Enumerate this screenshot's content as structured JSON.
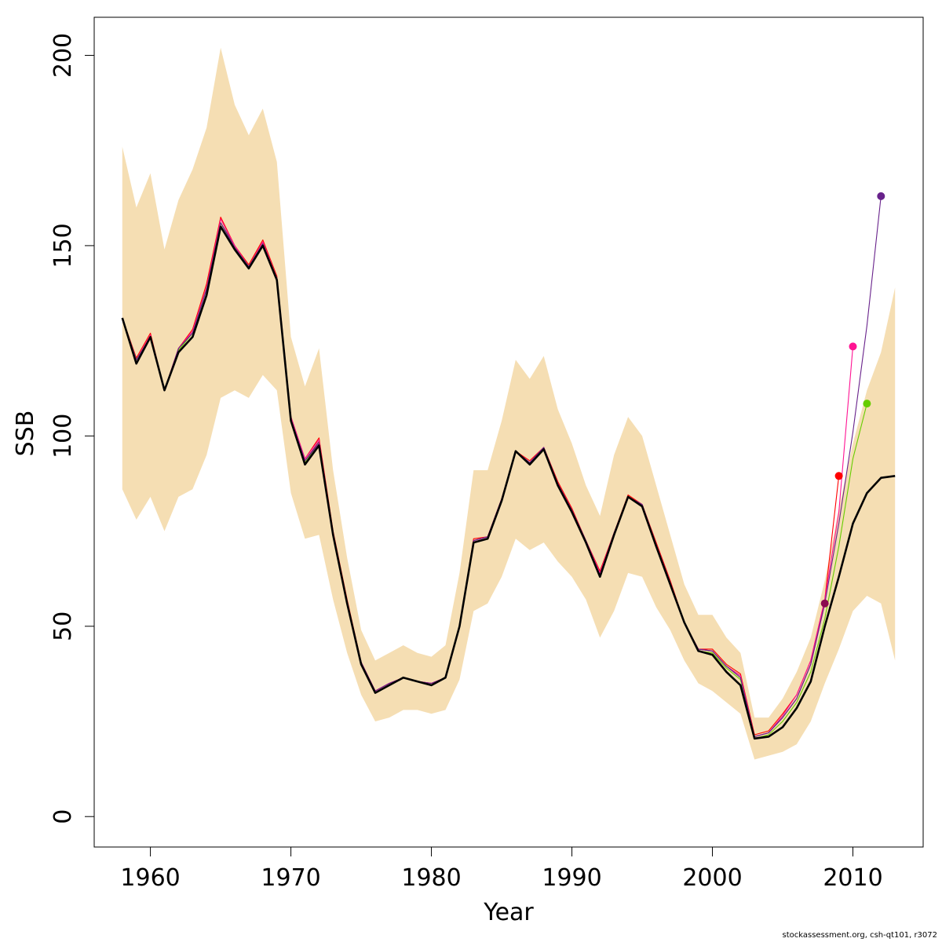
{
  "chart_data": {
    "type": "line",
    "title": "",
    "xlabel": "Year",
    "ylabel": "SSB",
    "xlim": [
      1956,
      2015
    ],
    "ylim": [
      -8,
      210
    ],
    "xticks": [
      1960,
      1970,
      1980,
      1990,
      2000,
      2010
    ],
    "yticks": [
      0,
      50,
      100,
      150,
      200
    ],
    "grid": false,
    "band_color": "#F5DEB3",
    "band": {
      "x": [
        1958,
        1959,
        1960,
        1961,
        1962,
        1963,
        1964,
        1965,
        1966,
        1967,
        1968,
        1969,
        1970,
        1971,
        1972,
        1973,
        1974,
        1975,
        1976,
        1977,
        1978,
        1979,
        1980,
        1981,
        1982,
        1983,
        1984,
        1985,
        1986,
        1987,
        1988,
        1989,
        1990,
        1991,
        1992,
        1993,
        1994,
        1995,
        1996,
        1997,
        1998,
        1999,
        2000,
        2001,
        2002,
        2003,
        2004,
        2005,
        2006,
        2007,
        2008,
        2009,
        2010,
        2011,
        2012,
        2013
      ],
      "upper": [
        176,
        160,
        169,
        149,
        162,
        170,
        181,
        202,
        187,
        179,
        186,
        172,
        126,
        113,
        123,
        91,
        68,
        49,
        41,
        43,
        45,
        43,
        42,
        45,
        64,
        91,
        91,
        104,
        120,
        115,
        121,
        107,
        98,
        87,
        79,
        95,
        105,
        100,
        87,
        74,
        61,
        53,
        53,
        47,
        43,
        26,
        26,
        31,
        38,
        47,
        62,
        81,
        98,
        112,
        122,
        139
      ],
      "lower": [
        86,
        78,
        84,
        75,
        84,
        86,
        95,
        110,
        112,
        110,
        116,
        112,
        85,
        73,
        74,
        57,
        43,
        32,
        25,
        26,
        28,
        28,
        27,
        28,
        36,
        54,
        56,
        63,
        73,
        70,
        72,
        67,
        63,
        57,
        47,
        54,
        64,
        63,
        55,
        49,
        41,
        35,
        33,
        30,
        27,
        15,
        16,
        17,
        19,
        25,
        35,
        44,
        54,
        58,
        56,
        41
      ]
    },
    "series": [
      {
        "color": "#000000",
        "x": [
          1958,
          1959,
          1960,
          1961,
          1962,
          1963,
          1964,
          1965,
          1966,
          1967,
          1968,
          1969,
          1970,
          1971,
          1972,
          1973,
          1974,
          1975,
          1976,
          1977,
          1978,
          1979,
          1980,
          1981,
          1982,
          1983,
          1984,
          1985,
          1986,
          1987,
          1988,
          1989,
          1990,
          1991,
          1992,
          1993,
          1994,
          1995,
          1996,
          1997,
          1998,
          1999,
          2000,
          2001,
          2002,
          2003,
          2004,
          2005,
          2006,
          2007,
          2008,
          2009,
          2010,
          2011,
          2012,
          2013
        ],
        "values": [
          131,
          119,
          126,
          112,
          122,
          126,
          137,
          155,
          149,
          144,
          150,
          141,
          104,
          92.5,
          97.5,
          74,
          56,
          40,
          32.5,
          34.5,
          36.5,
          35.5,
          34.5,
          36.5,
          50,
          72,
          73,
          83,
          96,
          92.5,
          96.5,
          87,
          80,
          72,
          63,
          74,
          84,
          81.5,
          71,
          61,
          51,
          43.5,
          42.5,
          38,
          34.5,
          20.5,
          21,
          23.5,
          28.5,
          35.5,
          50,
          63,
          77,
          85,
          89,
          89.5
        ]
      },
      {
        "color": "#8B0A50",
        "x": [
          1958,
          1959,
          1960,
          1961,
          1962,
          1963,
          1964,
          1965,
          1966,
          1967,
          1968,
          1969,
          1970,
          1971,
          1972,
          1973,
          1974,
          1975,
          1976,
          1977,
          1978,
          1979,
          1980,
          1981,
          1982,
          1983,
          1984,
          1985,
          1986,
          1987,
          1988,
          1989,
          1990,
          1991,
          1992,
          1993,
          1994,
          1995,
          1996,
          1997,
          1998,
          1999,
          2000,
          2001,
          2002,
          2003,
          2004,
          2005,
          2006,
          2007,
          2008
        ],
        "values": [
          131,
          120,
          126,
          112,
          123,
          127,
          139,
          156,
          150,
          144.5,
          151,
          141.5,
          105,
          93.5,
          98.5,
          74.5,
          56.5,
          40.5,
          33,
          35,
          36.5,
          35.5,
          35,
          36.5,
          50,
          72.5,
          73.5,
          83.5,
          96,
          93,
          97,
          87.5,
          80.5,
          72.5,
          64,
          74.5,
          84,
          82,
          71.5,
          61.5,
          51,
          44,
          43.5,
          39.5,
          37,
          21,
          22,
          26,
          31,
          40,
          56
        ],
        "end_point": {
          "x": 2008,
          "y": 56
        }
      },
      {
        "color": "#FF0000",
        "x": [
          1958,
          1959,
          1960,
          1961,
          1962,
          1963,
          1964,
          1965,
          1966,
          1967,
          1968,
          1969,
          1970,
          1971,
          1972,
          1973,
          1974,
          1975,
          1976,
          1977,
          1978,
          1979,
          1980,
          1981,
          1982,
          1983,
          1984,
          1985,
          1986,
          1987,
          1988,
          1989,
          1990,
          1991,
          1992,
          1993,
          1994,
          1995,
          1996,
          1997,
          1998,
          1999,
          2000,
          2001,
          2002,
          2003,
          2004,
          2005,
          2006,
          2007,
          2008,
          2009
        ],
        "values": [
          131,
          120.5,
          127,
          112,
          123,
          128,
          140,
          157.5,
          150,
          145,
          151.5,
          142,
          105,
          94,
          99.5,
          75,
          57,
          40.5,
          33,
          35,
          36.5,
          35.5,
          35,
          36.5,
          50,
          73,
          73.5,
          83.5,
          96,
          93.5,
          97,
          88,
          81,
          72.5,
          64.5,
          74.5,
          84.5,
          82,
          72,
          62,
          51,
          44,
          44,
          40,
          37.5,
          21.5,
          22.5,
          27,
          32,
          41,
          57,
          89.5
        ],
        "end_point": {
          "x": 2009,
          "y": 89.5
        }
      },
      {
        "color": "#FF1493",
        "x": [
          1958,
          1959,
          1960,
          1961,
          1962,
          1963,
          1964,
          1965,
          1966,
          1967,
          1968,
          1969,
          1970,
          1971,
          1972,
          1973,
          1974,
          1975,
          1976,
          1977,
          1978,
          1979,
          1980,
          1981,
          1982,
          1983,
          1984,
          1985,
          1986,
          1987,
          1988,
          1989,
          1990,
          1991,
          1992,
          1993,
          1994,
          1995,
          1996,
          1997,
          1998,
          1999,
          2000,
          2001,
          2002,
          2003,
          2004,
          2005,
          2006,
          2007,
          2008,
          2009,
          2010
        ],
        "values": [
          131,
          120,
          126.5,
          112,
          123,
          127.5,
          139,
          157,
          150,
          144.5,
          151,
          141.5,
          105,
          94,
          99,
          74.5,
          56.5,
          40.5,
          33,
          35,
          36.5,
          35.5,
          35,
          36.5,
          50,
          72.5,
          73.5,
          83.5,
          96,
          93,
          97,
          87.5,
          80.5,
          72.5,
          64,
          74.5,
          84,
          82,
          71.5,
          61.5,
          51,
          44,
          43.5,
          39.5,
          37,
          21,
          22,
          26.5,
          32,
          41,
          57,
          80,
          123.5
        ],
        "end_point": {
          "x": 2010,
          "y": 123.5
        }
      },
      {
        "color": "#66CD00",
        "x": [
          1958,
          1959,
          1960,
          1961,
          1962,
          1963,
          1964,
          1965,
          1966,
          1967,
          1968,
          1969,
          1970,
          1971,
          1972,
          1973,
          1974,
          1975,
          1976,
          1977,
          1978,
          1979,
          1980,
          1981,
          1982,
          1983,
          1984,
          1985,
          1986,
          1987,
          1988,
          1989,
          1990,
          1991,
          1992,
          1993,
          1994,
          1995,
          1996,
          1997,
          1998,
          1999,
          2000,
          2001,
          2002,
          2003,
          2004,
          2005,
          2006,
          2007,
          2008,
          2009,
          2010,
          2011
        ],
        "values": [
          131,
          120,
          126,
          112,
          122.5,
          127,
          138.5,
          156,
          149.5,
          144.5,
          150.5,
          141.5,
          104.5,
          93,
          98,
          74,
          56,
          40,
          32.5,
          34.5,
          36.5,
          35.5,
          34.5,
          36.5,
          50,
          72,
          73,
          83,
          96,
          92.5,
          96.5,
          87,
          80,
          72,
          63,
          74,
          84,
          81.5,
          71,
          61,
          51,
          43.5,
          43,
          39,
          36,
          20.5,
          21.5,
          25,
          30,
          38,
          52,
          71,
          94,
          108.5
        ],
        "end_point": {
          "x": 2011,
          "y": 108.5
        }
      },
      {
        "color": "#68228B",
        "x": [
          1958,
          1959,
          1960,
          1961,
          1962,
          1963,
          1964,
          1965,
          1966,
          1967,
          1968,
          1969,
          1970,
          1971,
          1972,
          1973,
          1974,
          1975,
          1976,
          1977,
          1978,
          1979,
          1980,
          1981,
          1982,
          1983,
          1984,
          1985,
          1986,
          1987,
          1988,
          1989,
          1990,
          1991,
          1992,
          1993,
          1994,
          1995,
          1996,
          1997,
          1998,
          1999,
          2000,
          2001,
          2002,
          2003,
          2004,
          2005,
          2006,
          2007,
          2008,
          2009,
          2010,
          2011,
          2012
        ],
        "values": [
          131,
          120,
          126,
          112,
          123,
          127,
          138.5,
          156,
          149.5,
          144.5,
          150.5,
          141.5,
          104.5,
          93.5,
          98,
          74.5,
          56,
          40.5,
          33,
          35,
          36.5,
          35.5,
          35,
          36.5,
          50,
          72.5,
          73.5,
          83.5,
          96,
          93,
          97,
          87.5,
          80.5,
          72.5,
          63.5,
          74.5,
          84,
          82,
          71.5,
          61.5,
          51,
          44,
          43.5,
          39.5,
          36.5,
          21,
          22,
          26,
          31,
          40,
          56,
          77,
          101,
          129,
          163
        ],
        "end_point": {
          "x": 2012,
          "y": 163
        }
      }
    ]
  },
  "footer": "stockassessment.org, csh-qt101, r3072"
}
